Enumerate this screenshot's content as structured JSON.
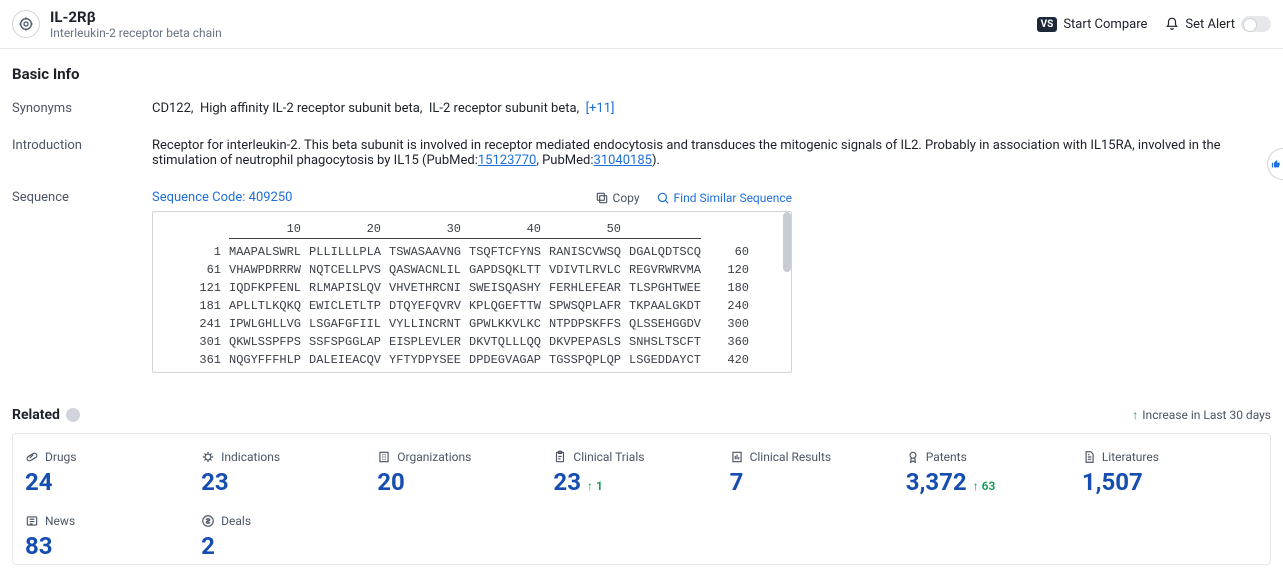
{
  "header": {
    "title": "IL-2Rβ",
    "subtitle": "Interleukin-2 receptor beta chain",
    "compare_label": "Start Compare",
    "alert_label": "Set Alert"
  },
  "basic_info": {
    "section_title": "Basic Info",
    "synonyms": {
      "label": "Synonyms",
      "items": [
        "CD122,",
        "High affinity IL-2 receptor subunit beta,",
        "IL-2 receptor subunit beta,"
      ],
      "more": "[+11]"
    },
    "introduction": {
      "label": "Introduction",
      "text_pre": "Receptor for interleukin-2. This beta subunit is involved in receptor mediated endocytosis and transduces the mitogenic signals of IL2. Probably in association with IL15RA, involved in the stimulation of neutrophil phagocytosis by IL15 (PubMed:",
      "link1": "15123770",
      "mid": ", PubMed:",
      "link2": "31040185",
      "tail": ")."
    },
    "sequence": {
      "label": "Sequence",
      "code_label": "Sequence Code: 409250",
      "copy_label": "Copy",
      "find_label": "Find Similar Sequence",
      "col_headers": [
        "10",
        "20",
        "30",
        "40",
        "50"
      ],
      "rows": [
        {
          "start": "1",
          "blocks": [
            "MAAPALSWRL",
            "PLLILLLPLA",
            "TSWASAAVNG",
            "TSQFTCFYNS",
            "RANISCVWSQ",
            "DGALQDTSCQ"
          ],
          "end": "60"
        },
        {
          "start": "61",
          "blocks": [
            "VHAWPDRRRW",
            "NQTCELLPVS",
            "QASWACNLIL",
            "GAPDSQKLTT",
            "VDIVTLRVLC",
            "REGVRWRVMA"
          ],
          "end": "120"
        },
        {
          "start": "121",
          "blocks": [
            "IQDFKPFENL",
            "RLMAPISLQV",
            "VHVETHRCNI",
            "SWEISQASHY",
            "FERHLEFEAR",
            "TLSPGHTWEE"
          ],
          "end": "180"
        },
        {
          "start": "181",
          "blocks": [
            "APLLTLKQKQ",
            "EWICLETLTP",
            "DTQYEFQVRV",
            "KPLQGEFTTW",
            "SPWSQPLAFR",
            "TKPAALGKDT"
          ],
          "end": "240"
        },
        {
          "start": "241",
          "blocks": [
            "IPWLGHLLVG",
            "LSGAFGFIIL",
            "VYLLINCRNT",
            "GPWLKKVLKC",
            "NTPDPSKFFS",
            "QLSSEHGGDV"
          ],
          "end": "300"
        },
        {
          "start": "301",
          "blocks": [
            "QKWLSSPFPS",
            "SSFSPGGLAP",
            "EISPLEVLER",
            "DKVTQLLLQQ",
            "DKVPEPASLS",
            "SNHSLTSCFT"
          ],
          "end": "360"
        },
        {
          "start": "361",
          "blocks": [
            "NQGYFFFHLP",
            "DALEIEACQV",
            "YFTYDPYSEE",
            "DPDEGVAGAP",
            "TGSSPQPLQP",
            "LSGEDDAYCT"
          ],
          "end": "420"
        }
      ]
    }
  },
  "related": {
    "title": "Related",
    "legend": "Increase in Last 30 days",
    "cards": [
      {
        "label": "Drugs",
        "value": "24",
        "icon": "pill"
      },
      {
        "label": "Indications",
        "value": "23",
        "icon": "virus"
      },
      {
        "label": "Organizations",
        "value": "20",
        "icon": "building"
      },
      {
        "label": "Clinical Trials",
        "value": "23",
        "delta": "1",
        "icon": "clipboard"
      },
      {
        "label": "Clinical Results",
        "value": "7",
        "icon": "report"
      },
      {
        "label": "Patents",
        "value": "3,372",
        "delta": "63",
        "icon": "patent"
      },
      {
        "label": "Literatures",
        "value": "1,507",
        "icon": "doc"
      },
      {
        "label": "News",
        "value": "83",
        "icon": "news"
      },
      {
        "label": "Deals",
        "value": "2",
        "icon": "deal"
      }
    ]
  },
  "colors": {
    "link": "#1e6fdb",
    "value": "#154eb0",
    "green": "#0d9a55",
    "border": "#e5e7eb",
    "text_muted": "#4b5563"
  }
}
